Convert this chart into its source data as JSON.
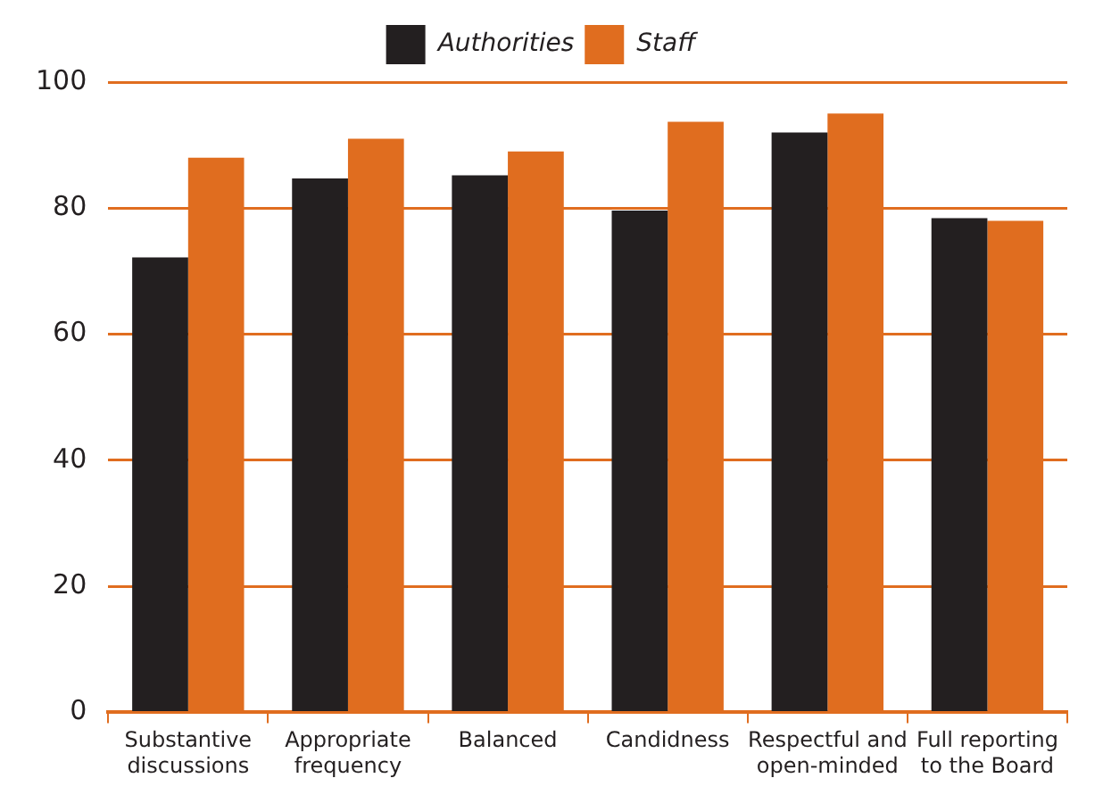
{
  "chart_data": {
    "type": "bar",
    "categories": [
      "Substantive discussions",
      "Appropriate frequency",
      "Balanced",
      "Candidness",
      "Respectful and open-minded",
      "Full reporting to the Board"
    ],
    "series": [
      {
        "name": "Authorities",
        "color": "#231f20",
        "values": [
          72.2,
          84.7,
          85.2,
          79.6,
          92,
          78.4
        ]
      },
      {
        "name": "Staff",
        "color": "#e06d1f",
        "values": [
          88,
          91,
          89,
          93.7,
          95,
          78
        ]
      }
    ],
    "ylim": [
      0,
      100
    ],
    "yticks": [
      0,
      20,
      40,
      60,
      80,
      100
    ],
    "grid": "y",
    "legend": "top"
  }
}
